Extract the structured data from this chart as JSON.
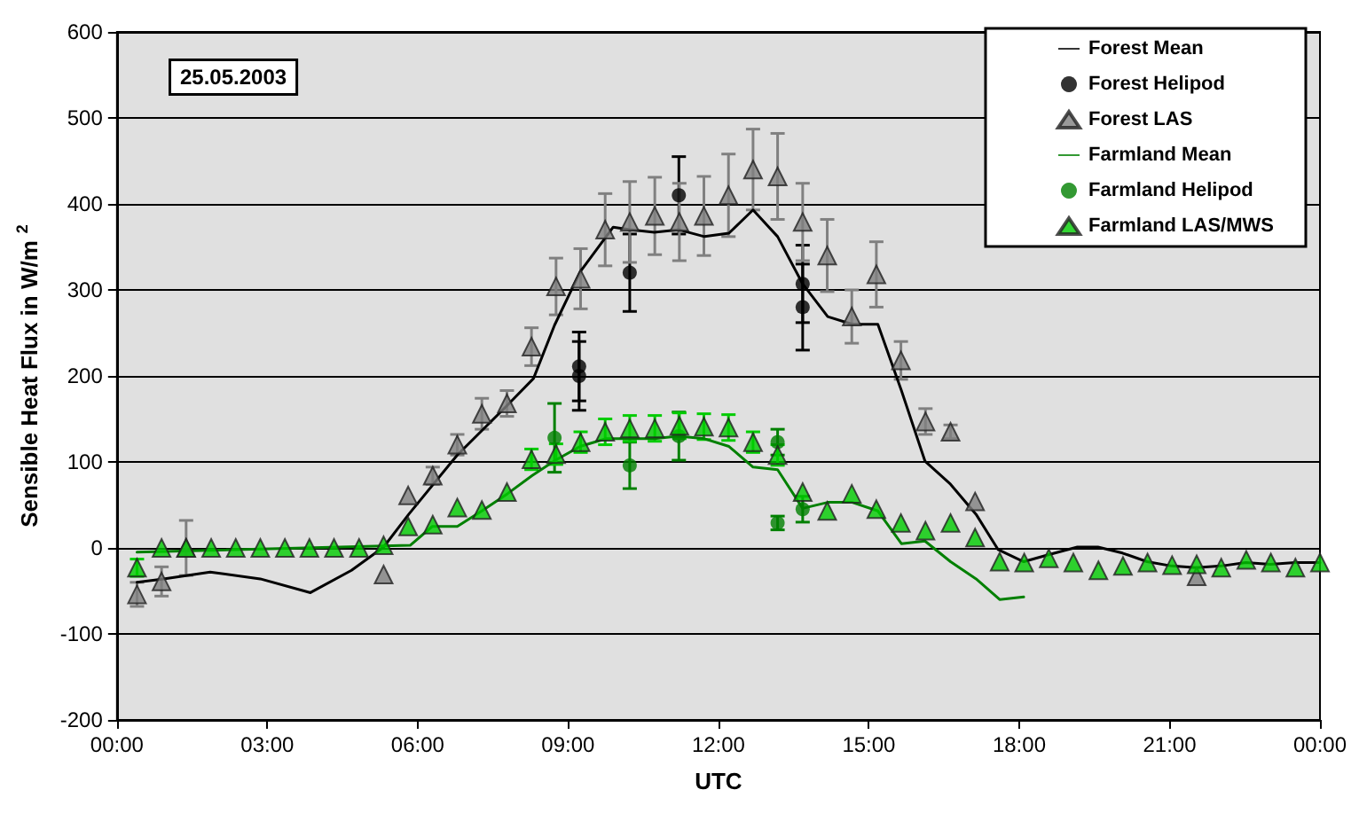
{
  "chart_data": {
    "type": "scatter",
    "xlabel": "UTC",
    "ylabel": "Sensible Heat Flux in W/m$^{2}$",
    "annotations": [
      "25.05.2003"
    ],
    "xlim": [
      0,
      24
    ],
    "xticks": [
      {
        "value": 0,
        "label": "00:00"
      },
      {
        "value": 3,
        "label": "03:00"
      },
      {
        "value": 6,
        "label": "06:00"
      },
      {
        "value": 9,
        "label": "09:00"
      },
      {
        "value": 12,
        "label": "12:00"
      },
      {
        "value": 15,
        "label": "15:00"
      },
      {
        "value": 18,
        "label": "18:00"
      },
      {
        "value": 21,
        "label": "21:00"
      },
      {
        "value": 24,
        "label": "00:00"
      }
    ],
    "ylim": [
      -200,
      600
    ],
    "yticks": [
      -200,
      -100,
      0,
      100,
      200,
      300,
      400,
      500,
      600
    ],
    "grid": "y",
    "legend": "top right",
    "x": [
      0.4,
      0.89,
      1.38,
      1.88,
      2.37,
      2.86,
      3.35,
      3.84,
      4.33,
      4.83,
      5.32,
      5.81,
      6.3,
      6.79,
      7.28,
      7.78,
      8.27,
      8.76,
      9.25,
      9.74,
      10.23,
      10.73,
      11.22,
      11.71,
      12.2,
      12.69,
      13.18,
      13.68,
      14.17,
      14.66,
      15.15,
      15.64,
      16.13,
      16.63,
      17.12,
      17.61,
      18.1,
      18.59,
      19.08,
      19.58,
      20.07,
      20.56,
      21.05,
      21.54,
      22.03,
      22.53,
      23.02,
      23.51,
      24.0
    ],
    "series": [
      {
        "name": "Forest Mean",
        "type": "line",
        "marker": "none",
        "color": "#000000",
        "x": [
          0.4,
          0.93,
          1.86,
          2.86,
          3.86,
          4.68,
          5.32,
          5.82,
          6.79,
          7.79,
          8.31,
          8.73,
          9.24,
          9.9,
          10.23,
          10.72,
          11.21,
          11.72,
          12.21,
          12.69,
          13.18,
          13.68,
          14.18,
          14.67,
          15.18,
          15.65,
          16.12,
          16.63,
          17.14,
          17.58,
          18.09,
          18.58,
          19.16,
          19.57,
          20.06,
          20.55,
          21.04,
          21.53,
          22.03,
          22.52,
          23.01,
          23.5,
          24.0
        ],
        "values": [
          -40,
          -36,
          -28,
          -36,
          -52,
          -26,
          1,
          39,
          108,
          166,
          197,
          259,
          321,
          373,
          370,
          367,
          370,
          362,
          366,
          393,
          362,
          307,
          269,
          260,
          260,
          183,
          101,
          74,
          39,
          -2,
          -16,
          -8,
          1,
          1,
          -6,
          -16,
          -21,
          -23,
          -21,
          -17,
          -19,
          -17,
          -17
        ]
      },
      {
        "name": "Forest Helipod",
        "marker": "circle",
        "color": "#000000",
        "x": [
          9.22,
          9.22,
          10.23,
          11.21,
          13.68,
          13.68
        ],
        "values": [
          211,
          200,
          320,
          410,
          307,
          280
        ],
        "errors": [
          40,
          40,
          45,
          45,
          45,
          50
        ]
      },
      {
        "name": "Forest LAS",
        "marker": "triangle",
        "color": "#808080",
        "values": [
          -54,
          -39,
          0,
          null,
          null,
          null,
          null,
          null,
          null,
          null,
          -31,
          61,
          84,
          120,
          156,
          168,
          234,
          304,
          313,
          370,
          379,
          386,
          379,
          386,
          410,
          440,
          432,
          379,
          340,
          269,
          318,
          218,
          147,
          135,
          54,
          null,
          null,
          null,
          null,
          null,
          null,
          null,
          null,
          -33,
          null,
          null,
          null,
          null,
          null
        ],
        "errors": [
          14,
          17,
          32,
          null,
          null,
          null,
          null,
          null,
          null,
          null,
          null,
          null,
          10,
          12,
          18,
          15,
          22,
          33,
          35,
          42,
          47,
          45,
          45,
          46,
          48,
          47,
          50,
          45,
          42,
          31,
          38,
          22,
          15,
          8,
          null,
          null,
          null,
          null,
          null,
          null,
          null,
          null,
          null,
          null,
          null,
          null,
          null,
          null,
          null
        ]
      },
      {
        "name": "Farmland Mean",
        "type": "line",
        "marker": "none",
        "color": "#008000",
        "x": [
          0.4,
          5.85,
          6.29,
          6.79,
          7.28,
          7.79,
          8.28,
          8.75,
          9.24,
          9.76,
          10.23,
          10.72,
          11.21,
          11.72,
          12.21,
          12.69,
          13.18,
          13.68,
          14.18,
          14.67,
          15.18,
          15.65,
          16.12,
          16.63,
          17.14,
          17.61,
          18.09
        ],
        "values": [
          -5,
          3,
          25,
          25,
          43,
          63,
          84,
          102,
          118,
          127,
          127,
          127,
          130,
          127,
          118,
          94,
          91,
          46,
          53,
          53,
          43,
          5,
          8,
          -16,
          -36,
          -60,
          -57
        ]
      },
      {
        "name": "Farmland Helipod",
        "marker": "circle",
        "color": "#008000",
        "x": [
          8.73,
          10.23,
          11.21,
          13.18,
          13.18,
          13.68
        ],
        "values": [
          128,
          96,
          130,
          123,
          29,
          45
        ],
        "errors": [
          40,
          27,
          28,
          15,
          8,
          15
        ]
      },
      {
        "name": "Farmland LAS/MWS",
        "marker": "triangle",
        "color": "#00cc00",
        "values": [
          -23,
          0,
          0,
          0,
          0,
          0,
          0,
          0,
          0,
          0,
          3,
          25,
          27,
          47,
          44,
          65,
          103,
          109,
          123,
          135,
          139,
          139,
          142,
          141,
          140,
          123,
          108,
          65,
          43,
          63,
          45,
          29,
          20,
          29,
          12,
          -16,
          -17,
          -12,
          -17,
          -26,
          -21,
          -17,
          -20,
          -19,
          -23,
          -14,
          -17,
          -23,
          -17
        ],
        "errors": [
          10,
          null,
          null,
          null,
          null,
          null,
          null,
          null,
          null,
          null,
          null,
          null,
          null,
          null,
          null,
          null,
          12,
          12,
          12,
          15,
          15,
          15,
          15,
          15,
          15,
          12,
          12,
          null,
          null,
          null,
          null,
          null,
          null,
          null,
          null,
          null,
          null,
          null,
          null,
          null,
          null,
          null,
          null,
          null,
          null,
          null,
          null,
          null,
          null
        ]
      }
    ]
  }
}
